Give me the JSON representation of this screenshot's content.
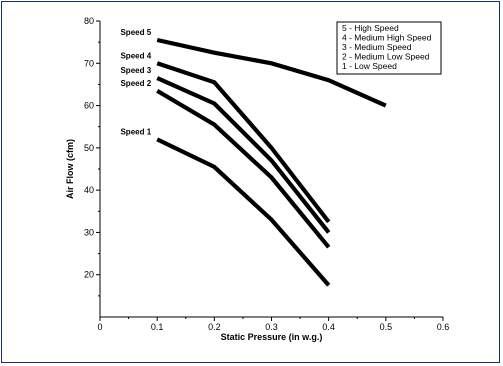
{
  "chart_data": {
    "type": "line",
    "title": "",
    "xlabel": "Static Pressure (in w.g.)",
    "ylabel": "Air Flow (cfm)",
    "xlim": [
      0,
      0.6
    ],
    "ylim": [
      10,
      80
    ],
    "x_ticks": [
      "0",
      "0.1",
      "0.2",
      "0.3",
      "0.4",
      "0.5",
      "0.6"
    ],
    "y_ticks": [
      "20",
      "30",
      "40",
      "50",
      "60",
      "70",
      "80"
    ],
    "grid": false,
    "legend_position": "top-right",
    "legend_entries": [
      "5 - High Speed",
      "4 - Medium High Speed",
      "3 - Medium Speed",
      "2 - Medium Low Speed",
      "1 - Low Speed"
    ],
    "series": [
      {
        "name": "Speed 5",
        "x": [
          0.1,
          0.2,
          0.3,
          0.4,
          0.5
        ],
        "y": [
          75.5,
          72.5,
          70.0,
          66.0,
          60.0
        ]
      },
      {
        "name": "Speed 4",
        "x": [
          0.1,
          0.2,
          0.3,
          0.4
        ],
        "y": [
          70.0,
          65.5,
          50.0,
          32.5
        ]
      },
      {
        "name": "Speed 3",
        "x": [
          0.1,
          0.2,
          0.3,
          0.4
        ],
        "y": [
          66.5,
          60.5,
          47.0,
          30.0
        ]
      },
      {
        "name": "Speed 2",
        "x": [
          0.1,
          0.2,
          0.3,
          0.4
        ],
        "y": [
          63.5,
          55.5,
          43.0,
          26.5
        ]
      },
      {
        "name": "Speed 1",
        "x": [
          0.1,
          0.2,
          0.3,
          0.4
        ],
        "y": [
          52.0,
          45.5,
          33.0,
          17.5
        ]
      }
    ],
    "line_color": "#000000"
  }
}
